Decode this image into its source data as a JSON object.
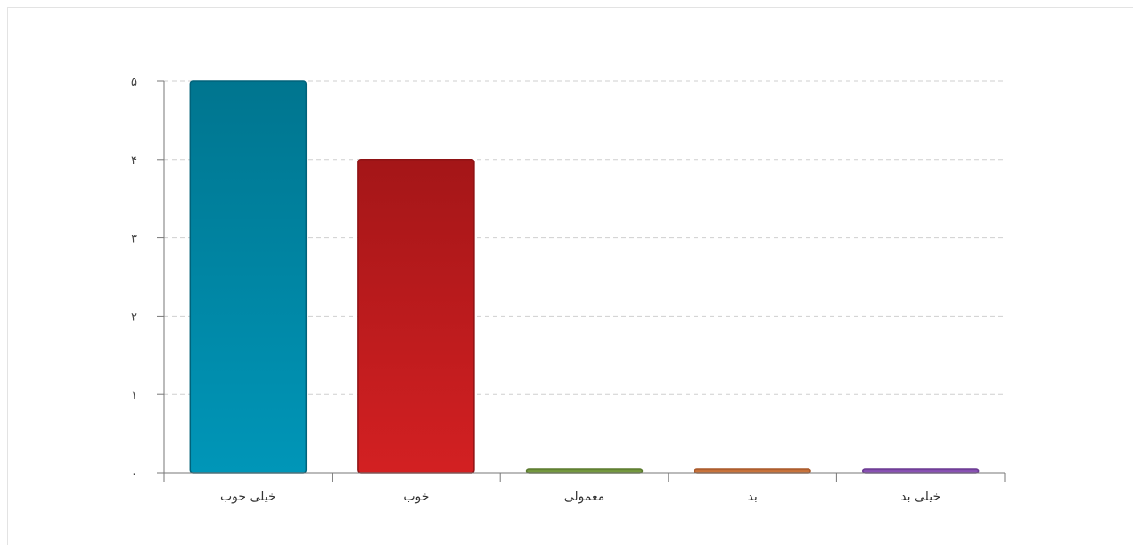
{
  "chart_data": {
    "type": "bar",
    "title": "",
    "xlabel": "",
    "ylabel": "",
    "categories": [
      "خیلی خوب",
      "خوب",
      "معمولی",
      "بد",
      "خیلی بد"
    ],
    "values": [
      5,
      4,
      0,
      0,
      0
    ],
    "ylim": [
      0,
      5
    ],
    "y_ticks": [
      0,
      1,
      2,
      3,
      4,
      5
    ],
    "y_tick_labels": [
      "۰",
      "۱",
      "۲",
      "۳",
      "۴",
      "۵"
    ],
    "grid": true,
    "grid_style": "dashed",
    "colors": [
      {
        "top": "#00758f",
        "bottom": "#0096b8",
        "edge": "#00627a"
      },
      {
        "top": "#a41618",
        "bottom": "#d32022",
        "edge": "#8e1214"
      },
      {
        "top": "#6e8f3a",
        "bottom": "#7aa043",
        "edge": "#5b7a2e"
      },
      {
        "top": "#c06a35",
        "bottom": "#cf7a40",
        "edge": "#a8582a"
      },
      {
        "top": "#7f4aa8",
        "bottom": "#9157bc",
        "edge": "#6b3a92"
      }
    ]
  }
}
